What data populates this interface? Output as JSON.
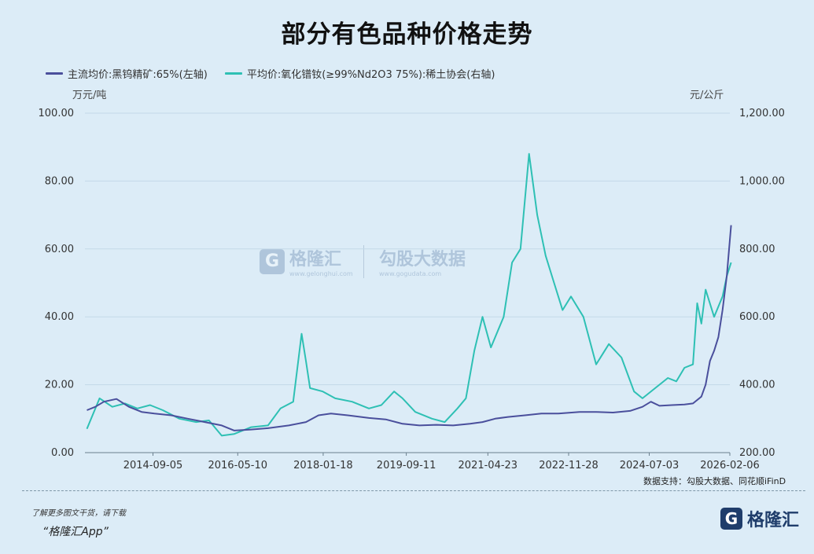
{
  "chart_data": {
    "type": "line",
    "title": "部分有色品种价格走势",
    "legend": [
      {
        "name": "主流均价:黑钨精矿:65%(左轴)",
        "color": "#4a4f9c"
      },
      {
        "name": "平均价:氧化镨钕(≥99%Nd2O3 75%):稀土协会(右轴)",
        "color": "#2ec0b4"
      }
    ],
    "left_axis": {
      "unit": "万元/吨",
      "min": 0,
      "max": 100,
      "ticks": [
        "0.00",
        "20.00",
        "40.00",
        "60.00",
        "80.00",
        "100.00"
      ]
    },
    "right_axis": {
      "unit": "元/公斤",
      "min": 200,
      "max": 1200,
      "ticks": [
        "200.00",
        "400.00",
        "600.00",
        "800.00",
        "1,000.00",
        "1,200.00"
      ]
    },
    "x_range": [
      "2013-05-01",
      "2026-02-06"
    ],
    "x_ticks": [
      "2014-09-05",
      "2016-05-10",
      "2018-01-18",
      "2019-09-11",
      "2021-04-23",
      "2022-11-28",
      "2024-07-03",
      "2026-02-06"
    ],
    "series": [
      {
        "name": "主流均价:黑钨精矿:65%(左轴)",
        "axis": "left",
        "points": [
          [
            "2013-05",
            12.5
          ],
          [
            "2013-07",
            13.5
          ],
          [
            "2013-09",
            15.0
          ],
          [
            "2013-12",
            15.8
          ],
          [
            "2014-03",
            13.5
          ],
          [
            "2014-06",
            12.0
          ],
          [
            "2014-09",
            11.5
          ],
          [
            "2015-01",
            11.0
          ],
          [
            "2015-05",
            10.0
          ],
          [
            "2015-09",
            9.0
          ],
          [
            "2016-01",
            8.0
          ],
          [
            "2016-04",
            6.5
          ],
          [
            "2016-08",
            6.8
          ],
          [
            "2016-12",
            7.2
          ],
          [
            "2017-05",
            8.0
          ],
          [
            "2017-09",
            9.0
          ],
          [
            "2017-12",
            11.0
          ],
          [
            "2018-03",
            11.5
          ],
          [
            "2018-07",
            11.0
          ],
          [
            "2018-12",
            10.2
          ],
          [
            "2019-04",
            9.8
          ],
          [
            "2019-08",
            8.5
          ],
          [
            "2019-12",
            8.0
          ],
          [
            "2020-04",
            8.2
          ],
          [
            "2020-08",
            8.0
          ],
          [
            "2020-12",
            8.5
          ],
          [
            "2021-03",
            9.0
          ],
          [
            "2021-06",
            10.0
          ],
          [
            "2021-09",
            10.5
          ],
          [
            "2022-01",
            11.0
          ],
          [
            "2022-05",
            11.5
          ],
          [
            "2022-09",
            11.5
          ],
          [
            "2023-02",
            12.0
          ],
          [
            "2023-06",
            12.0
          ],
          [
            "2023-10",
            11.8
          ],
          [
            "2024-02",
            12.3
          ],
          [
            "2024-05",
            13.5
          ],
          [
            "2024-07",
            15.0
          ],
          [
            "2024-09",
            13.8
          ],
          [
            "2024-12",
            14.0
          ],
          [
            "2025-03",
            14.2
          ],
          [
            "2025-05",
            14.5
          ],
          [
            "2025-07",
            16.5
          ],
          [
            "2025-08",
            20.0
          ],
          [
            "2025-09",
            27.0
          ],
          [
            "2025-10",
            30.0
          ],
          [
            "2025-11",
            34.0
          ],
          [
            "2025-12",
            42.0
          ],
          [
            "2026-01",
            52.0
          ],
          [
            "2026-02",
            67.0
          ]
        ]
      },
      {
        "name": "平均价:氧化镨钕(≥99%Nd2O3 75%):稀土协会(右轴)",
        "axis": "right",
        "points": [
          [
            "2013-05",
            270
          ],
          [
            "2013-08",
            360
          ],
          [
            "2013-11",
            335
          ],
          [
            "2014-02",
            345
          ],
          [
            "2014-05",
            330
          ],
          [
            "2014-08",
            340
          ],
          [
            "2014-11",
            325
          ],
          [
            "2015-03",
            300
          ],
          [
            "2015-07",
            290
          ],
          [
            "2015-10",
            295
          ],
          [
            "2016-01",
            250
          ],
          [
            "2016-04",
            255
          ],
          [
            "2016-08",
            275
          ],
          [
            "2016-12",
            280
          ],
          [
            "2017-03",
            330
          ],
          [
            "2017-06",
            350
          ],
          [
            "2017-08",
            550
          ],
          [
            "2017-09",
            470
          ],
          [
            "2017-10",
            390
          ],
          [
            "2018-01",
            380
          ],
          [
            "2018-04",
            360
          ],
          [
            "2018-08",
            350
          ],
          [
            "2018-12",
            330
          ],
          [
            "2019-03",
            340
          ],
          [
            "2019-06",
            380
          ],
          [
            "2019-08",
            360
          ],
          [
            "2019-11",
            320
          ],
          [
            "2020-03",
            300
          ],
          [
            "2020-06",
            290
          ],
          [
            "2020-09",
            330
          ],
          [
            "2020-11",
            360
          ],
          [
            "2021-01",
            500
          ],
          [
            "2021-03",
            600
          ],
          [
            "2021-05",
            510
          ],
          [
            "2021-08",
            600
          ],
          [
            "2021-10",
            760
          ],
          [
            "2021-12",
            800
          ],
          [
            "2022-02",
            1080
          ],
          [
            "2022-04",
            900
          ],
          [
            "2022-06",
            780
          ],
          [
            "2022-08",
            700
          ],
          [
            "2022-10",
            620
          ],
          [
            "2022-12",
            660
          ],
          [
            "2023-03",
            600
          ],
          [
            "2023-06",
            460
          ],
          [
            "2023-09",
            520
          ],
          [
            "2023-12",
            480
          ],
          [
            "2024-03",
            380
          ],
          [
            "2024-05",
            360
          ],
          [
            "2024-08",
            390
          ],
          [
            "2024-11",
            420
          ],
          [
            "2025-01",
            410
          ],
          [
            "2025-03",
            450
          ],
          [
            "2025-05",
            460
          ],
          [
            "2025-06",
            640
          ],
          [
            "2025-07",
            580
          ],
          [
            "2025-08",
            680
          ],
          [
            "2025-10",
            600
          ],
          [
            "2025-12",
            660
          ],
          [
            "2026-01",
            720
          ],
          [
            "2026-02",
            760
          ]
        ]
      }
    ],
    "grid": "horizontal"
  },
  "source_text": "数据支持：勾股大数据、同花顺iFinD",
  "footer": {
    "line1": "了解更多图文干货，请下载",
    "line2": "“格隆汇App”"
  },
  "logo": {
    "mark": "G",
    "text": "格隆汇"
  },
  "watermark": {
    "brand1": "格隆汇",
    "sub1": "www.gelonghui.com",
    "brand2": "勾股大数据",
    "sub2": "www.gogudata.com"
  }
}
